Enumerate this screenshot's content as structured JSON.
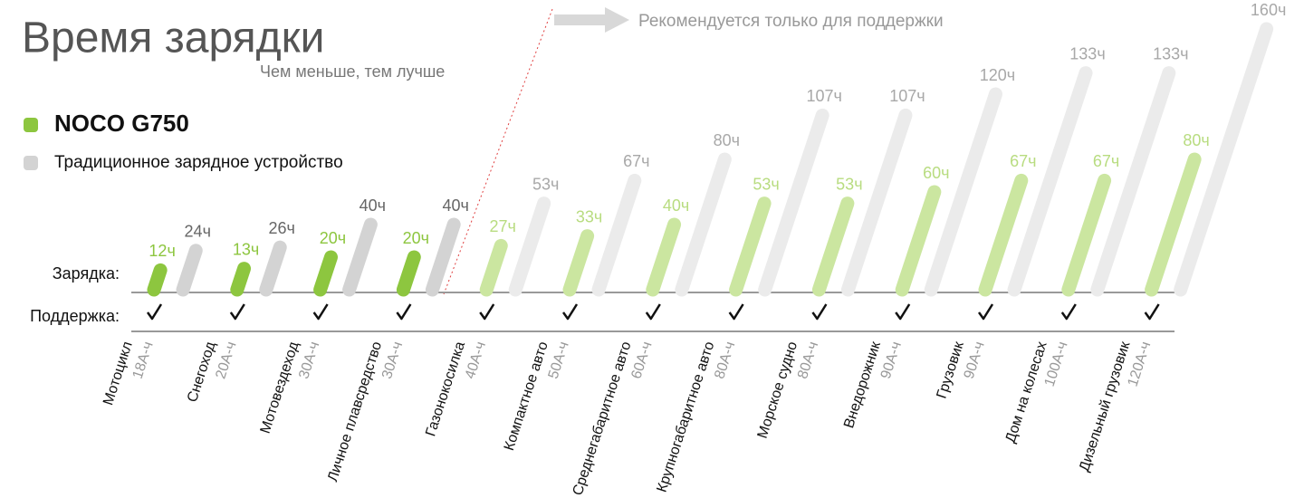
{
  "chart_data": {
    "type": "slanted-bar",
    "title": "Время зарядки",
    "subtitle": "Чем меньше, тем лучше",
    "annotation": "Рекомендуется только для поддержки",
    "row_labels": [
      "Зарядка:",
      "Поддержка:"
    ],
    "categories": [
      "Мотоцикл",
      "Снегоход",
      "Мотовездеход",
      "Личное плавсредство",
      "Газонокосилка",
      "Компактное авто",
      "Среднегабаритное авто",
      "Крупногабаритное авто",
      "Морское судно",
      "Внедорожник",
      "Грузовик",
      "Дом на колесах",
      "Дизельный грузовик"
    ],
    "capacities": [
      "18А-ч",
      "20А-ч",
      "30А-ч",
      "30А-ч",
      "40А-ч",
      "50А-ч",
      "60А-ч",
      "80А-ч",
      "80А-ч",
      "90А-ч",
      "90А-ч",
      "100А-ч",
      "120А-ч"
    ],
    "support": [
      true,
      true,
      true,
      true,
      true,
      true,
      true,
      true,
      true,
      true,
      true,
      true,
      true
    ],
    "series": [
      {
        "name": "NOCO G750",
        "color": "#8dc63f",
        "colors": [
          "#8dc63f",
          "#8dc63f",
          "#8dc63f",
          "#8dc63f",
          "#cbe6a0",
          "#cbe6a0",
          "#cbe6a0",
          "#cbe6a0",
          "#cbe6a0",
          "#cbe6a0",
          "#cbe6a0",
          "#cbe6a0",
          "#cbe6a0"
        ],
        "label_colors": [
          "#8dc63f",
          "#8dc63f",
          "#8dc63f",
          "#8dc63f",
          "#b8dc80",
          "#b8dc80",
          "#b8dc80",
          "#b8dc80",
          "#b8dc80",
          "#b8dc80",
          "#b8dc80",
          "#b8dc80",
          "#b8dc80"
        ],
        "values": [
          12,
          13,
          20,
          20,
          27,
          33,
          40,
          53,
          53,
          60,
          67,
          67,
          80
        ],
        "value_labels": [
          "12ч",
          "13ч",
          "20ч",
          "20ч",
          "27ч",
          "33ч",
          "40ч",
          "53ч",
          "53ч",
          "60ч",
          "67ч",
          "67ч",
          "80ч"
        ]
      },
      {
        "name": "Традиционное зарядное устройство",
        "color": "#d3d3d3",
        "colors": [
          "#d3d3d3",
          "#d3d3d3",
          "#d3d3d3",
          "#d3d3d3",
          "#ebebeb",
          "#ebebeb",
          "#ebebeb",
          "#ebebeb",
          "#ebebeb",
          "#ebebeb",
          "#ebebeb",
          "#ebebeb",
          "#ebebeb"
        ],
        "label_colors": [
          "#666666",
          "#666666",
          "#666666",
          "#666666",
          "#a8a8a8",
          "#a8a8a8",
          "#a8a8a8",
          "#a8a8a8",
          "#a8a8a8",
          "#a8a8a8",
          "#a8a8a8",
          "#a8a8a8",
          "#a8a8a8"
        ],
        "values": [
          24,
          26,
          40,
          40,
          53,
          67,
          80,
          107,
          107,
          120,
          133,
          133,
          160
        ],
        "value_labels": [
          "24ч",
          "26ч",
          "40ч",
          "40ч",
          "53ч",
          "67ч",
          "80ч",
          "107ч",
          "107ч",
          "120ч",
          "133ч",
          "133ч",
          "160ч"
        ]
      }
    ]
  }
}
